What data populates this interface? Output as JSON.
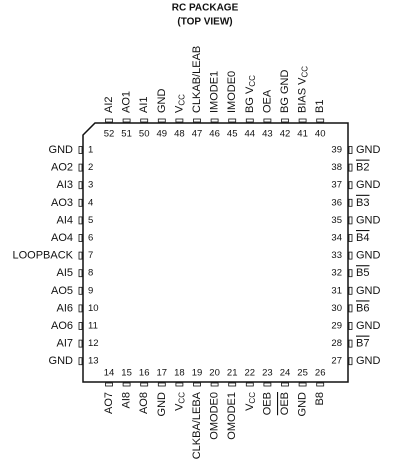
{
  "title": [
    "RC PACKAGE",
    "(TOP VIEW)"
  ],
  "left_pins": [
    {
      "number": 1,
      "name": "GND"
    },
    {
      "number": 2,
      "name": "AO2"
    },
    {
      "number": 3,
      "name": "AI3"
    },
    {
      "number": 4,
      "name": "AO3"
    },
    {
      "number": 5,
      "name": "AI4"
    },
    {
      "number": 6,
      "name": "AO4"
    },
    {
      "number": 7,
      "name": "LOOPBACK"
    },
    {
      "number": 8,
      "name": "AI5"
    },
    {
      "number": 9,
      "name": "AO5"
    },
    {
      "number": 10,
      "name": "AI6"
    },
    {
      "number": 11,
      "name": "AO6"
    },
    {
      "number": 12,
      "name": "AI7"
    },
    {
      "number": 13,
      "name": "GND"
    }
  ],
  "bottom_pins": [
    {
      "number": 14,
      "name": "AO7"
    },
    {
      "number": 15,
      "name": "AI8"
    },
    {
      "number": 16,
      "name": "AO8"
    },
    {
      "number": 17,
      "name": "GND"
    },
    {
      "number": 18,
      "name": "V",
      "sub": "CC"
    },
    {
      "number": 19,
      "name": "CLKBA/LEBA"
    },
    {
      "number": 20,
      "name": "OMODE0"
    },
    {
      "number": 21,
      "name": "OMODE1"
    },
    {
      "number": 22,
      "name": "V",
      "sub": "CC"
    },
    {
      "number": 23,
      "name": "OEB"
    },
    {
      "number": 24,
      "name": "OEB",
      "overline": true
    },
    {
      "number": 25,
      "name": "GND"
    },
    {
      "number": 26,
      "name": "B8"
    }
  ],
  "right_pins": [
    {
      "number": 39,
      "name": "GND"
    },
    {
      "number": 38,
      "name": "B2",
      "overline": true
    },
    {
      "number": 37,
      "name": "GND"
    },
    {
      "number": 36,
      "name": "B3",
      "overline": true
    },
    {
      "number": 35,
      "name": "GND"
    },
    {
      "number": 34,
      "name": "B4",
      "overline": true
    },
    {
      "number": 33,
      "name": "GND"
    },
    {
      "number": 32,
      "name": "B5",
      "overline": true
    },
    {
      "number": 31,
      "name": "GND"
    },
    {
      "number": 30,
      "name": "B6",
      "overline": true
    },
    {
      "number": 29,
      "name": "GND"
    },
    {
      "number": 28,
      "name": "B7",
      "overline": true
    },
    {
      "number": 27,
      "name": "GND"
    }
  ],
  "top_pins": [
    {
      "number": 52,
      "name": "AI2"
    },
    {
      "number": 51,
      "name": "AO1"
    },
    {
      "number": 50,
      "name": "AI1"
    },
    {
      "number": 49,
      "name": "GND"
    },
    {
      "number": 48,
      "name": "V",
      "sub": "CC"
    },
    {
      "number": 47,
      "name": "CLKAB/LEAB"
    },
    {
      "number": 46,
      "name": "IMODE1"
    },
    {
      "number": 45,
      "name": "IMODE0"
    },
    {
      "number": 44,
      "name": "BG V",
      "sub": "CC"
    },
    {
      "number": 43,
      "name": "OEA"
    },
    {
      "number": 42,
      "name": "BG GND"
    },
    {
      "number": 41,
      "name": "BIAS V",
      "sub": "CC"
    },
    {
      "number": 40,
      "name": "B1"
    }
  ]
}
